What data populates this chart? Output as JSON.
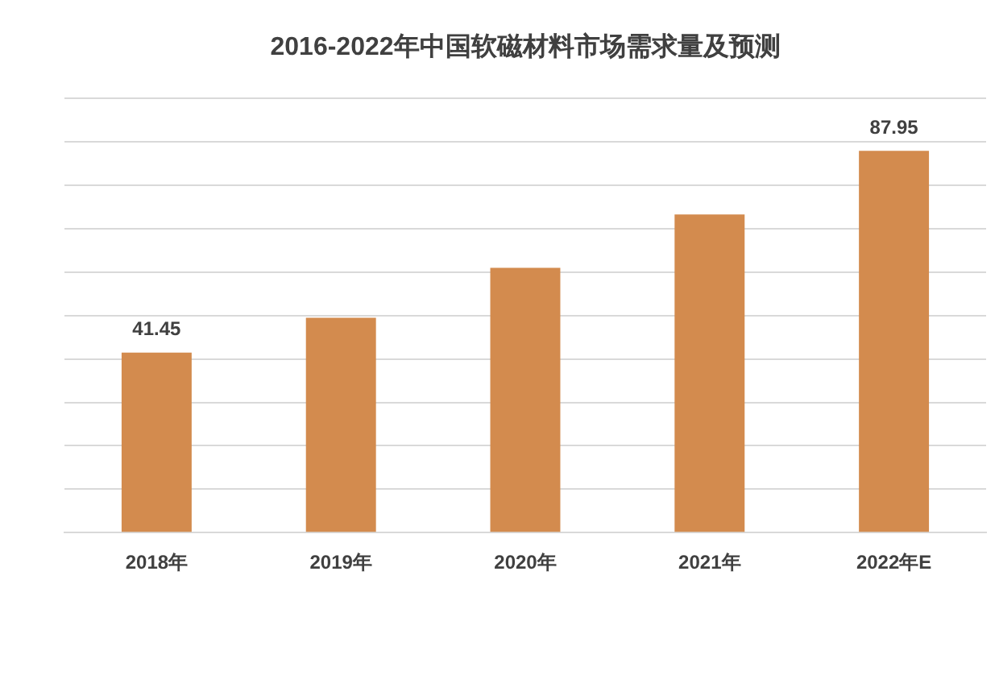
{
  "chart_data": {
    "type": "bar",
    "title": "2016-2022年中国软磁材料市场需求量及预测",
    "categories": [
      "2018年",
      "2019年",
      "2020年",
      "2021年",
      "2022年E"
    ],
    "values": [
      41.45,
      49.5,
      61.0,
      73.3,
      87.95
    ],
    "value_labels": [
      "41.45",
      null,
      null,
      null,
      "87.95"
    ],
    "color": "#d38b4e",
    "ylim": [
      0,
      100
    ],
    "yticks": [
      {
        "value": 0,
        "label": null
      },
      {
        "value": 10,
        "label": null
      },
      {
        "value": 20,
        "label": null
      },
      {
        "value": 30,
        "label": null
      },
      {
        "value": 40,
        "label": null
      },
      {
        "value": 50,
        "label": null
      },
      {
        "value": 60,
        "label": null
      },
      {
        "value": 70,
        "label": null
      },
      {
        "value": 80,
        "label": null
      },
      {
        "value": 90,
        "label": null
      },
      {
        "value": 100,
        "label": null
      }
    ],
    "grid": "y",
    "tick_labels": "x",
    "legend": false
  }
}
